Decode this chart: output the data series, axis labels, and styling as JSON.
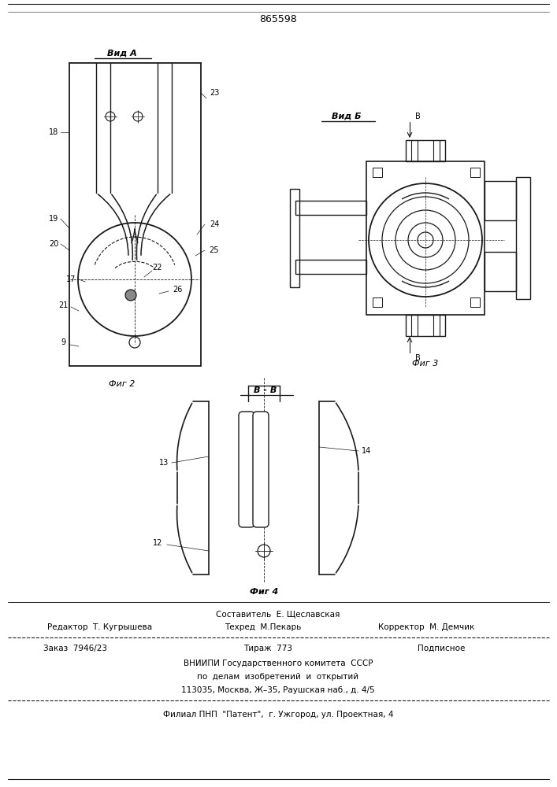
{
  "patent_number": "865598",
  "background_color": "#ffffff",
  "line_color": "#1a1a1a",
  "fig_width": 7.07,
  "fig_height": 10.0,
  "texts": {
    "patent_num": "865598",
    "vid_a": "Вид А",
    "vid_b": "Вид Б",
    "section_bb": "В - В",
    "fig2": "Фиг 2",
    "fig3": "Фиг 3",
    "fig4": "Фиг 4",
    "b_arrow": "В",
    "composer": "Составитель  Е. Щеславская",
    "editor": "Редактор  Т. Кугрышева",
    "techred": "Техред  М.Пекарь",
    "corrector": "Корректор  М. Демчик",
    "zakaz": "Заказ  7946/23",
    "tirazh": "Тираж  773",
    "podpisnoe": "Подписное",
    "vniipи": "ВНИИПИ Государственного комитета  СССР",
    "po_delam": "по  делам  изобретений  и  открытий",
    "address": "113035, Москва, Ж–35, Раушская наб., д. 4/5",
    "filial": "Филиал ПНП  \"Патент\",  г. Ужгород, ул. Проектная, 4"
  }
}
